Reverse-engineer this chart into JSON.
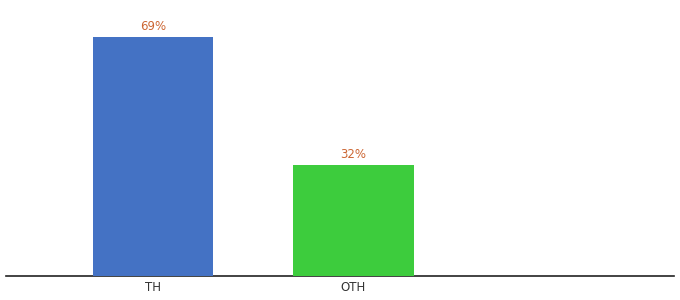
{
  "categories": [
    "TH",
    "OTH"
  ],
  "values": [
    69,
    32
  ],
  "bar_colors": [
    "#4472c4",
    "#3dcc3d"
  ],
  "label_color": "#cc6633",
  "background_color": "#ffffff",
  "ylim": [
    0,
    78
  ],
  "bar_width": 0.18,
  "label_fontsize": 8.5,
  "tick_fontsize": 8.5,
  "spine_color": "#222222",
  "x_positions": [
    0.22,
    0.52
  ],
  "xlim": [
    0.0,
    1.0
  ]
}
